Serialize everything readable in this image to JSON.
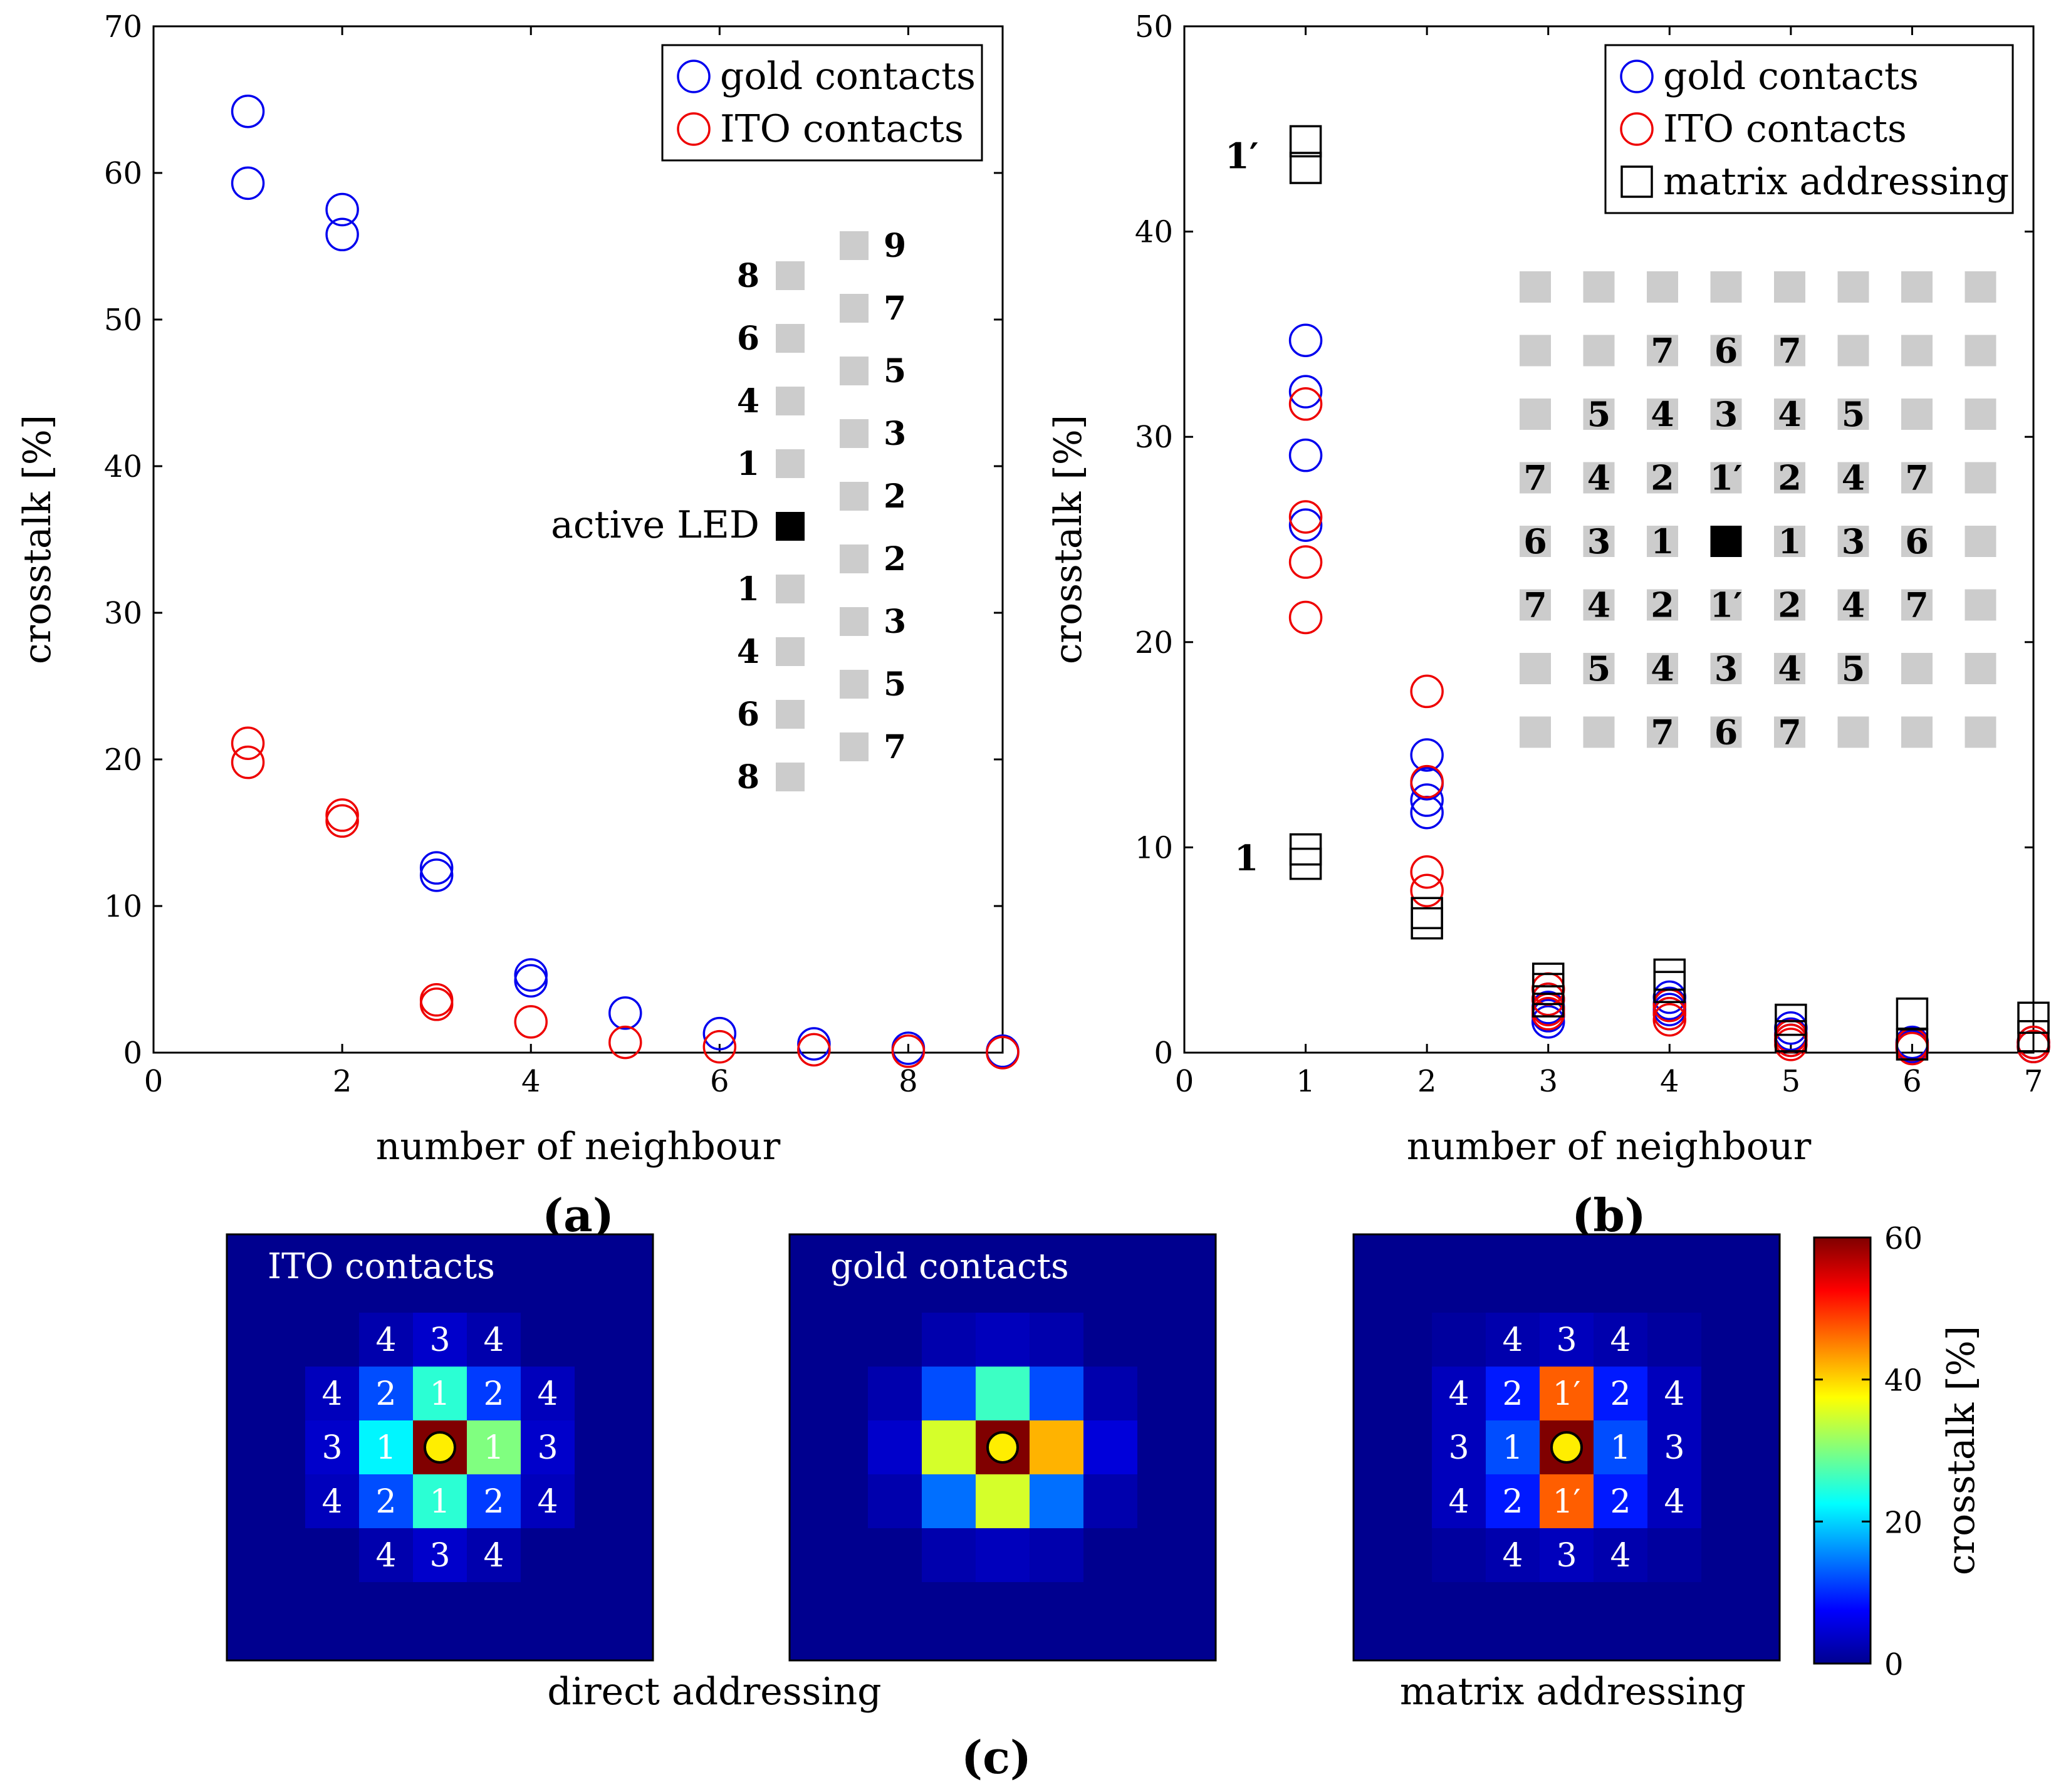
{
  "colors": {
    "gold": "#0000ee",
    "ito": "#ee0000",
    "matrix": "#000000",
    "grid_square": "#cccccc",
    "active": "#000000",
    "heat_bg": "#00008f"
  },
  "chart_data": [
    {
      "id": "a",
      "type": "scatter",
      "panel_label": "(a)",
      "xlabel": "number of neighbour",
      "ylabel": "crosstalk [%]",
      "xlim": [
        0,
        9
      ],
      "ylim": [
        0,
        70
      ],
      "xticks": [
        0,
        2,
        4,
        6,
        8
      ],
      "yticks": [
        0,
        10,
        20,
        30,
        40,
        50,
        60,
        70
      ],
      "legend": [
        "gold contacts",
        "ITO contacts"
      ],
      "series": [
        {
          "name": "gold contacts",
          "marker": "circle",
          "color": "#0000ee",
          "points": [
            [
              1,
              64.2
            ],
            [
              1,
              59.3
            ],
            [
              2,
              57.5
            ],
            [
              2,
              55.8
            ],
            [
              3,
              12.6
            ],
            [
              3,
              12.1
            ],
            [
              4,
              5.3
            ],
            [
              4,
              4.9
            ],
            [
              5,
              2.7
            ],
            [
              6,
              1.3
            ],
            [
              7,
              0.6
            ],
            [
              8,
              0.3
            ],
            [
              9,
              0.1
            ]
          ]
        },
        {
          "name": "ITO contacts",
          "marker": "circle",
          "color": "#ee0000",
          "points": [
            [
              1,
              21.1
            ],
            [
              1,
              19.8
            ],
            [
              2,
              16.2
            ],
            [
              2,
              15.8
            ],
            [
              3,
              3.6
            ],
            [
              3,
              3.3
            ],
            [
              4,
              2.1
            ],
            [
              5,
              0.7
            ],
            [
              6,
              0.4
            ],
            [
              7,
              0.2
            ],
            [
              8,
              0.1
            ],
            [
              9,
              0.0
            ]
          ]
        }
      ],
      "inset": {
        "left_labels": [
          "8",
          "6",
          "4",
          "1",
          "active LED",
          "1",
          "4",
          "6",
          "8"
        ],
        "right_labels": [
          "9",
          "7",
          "5",
          "3",
          "2",
          "2",
          "3",
          "5",
          "7"
        ]
      }
    },
    {
      "id": "b",
      "type": "scatter",
      "panel_label": "(b)",
      "xlabel": "number of neighbour",
      "ylabel": "crosstalk [%]",
      "xlim": [
        0,
        7
      ],
      "ylim": [
        0,
        50
      ],
      "xticks": [
        0,
        1,
        2,
        3,
        4,
        5,
        6,
        7
      ],
      "yticks": [
        0,
        10,
        20,
        30,
        40,
        50
      ],
      "legend": [
        "gold contacts",
        "ITO contacts",
        "matrix addressing"
      ],
      "series": [
        {
          "name": "gold contacts",
          "marker": "circle",
          "color": "#0000ee",
          "points": [
            [
              1,
              34.7
            ],
            [
              1,
              32.2
            ],
            [
              1,
              29.1
            ],
            [
              1,
              25.7
            ],
            [
              2,
              14.5
            ],
            [
              2,
              13.1
            ],
            [
              2,
              12.3
            ],
            [
              2,
              11.7
            ],
            [
              3,
              2.6
            ],
            [
              3,
              2.2
            ],
            [
              3,
              1.8
            ],
            [
              3,
              1.5
            ],
            [
              4,
              2.7
            ],
            [
              4,
              2.4
            ],
            [
              4,
              2.1
            ],
            [
              4,
              1.9
            ],
            [
              5,
              1.2
            ],
            [
              5,
              0.9
            ],
            [
              5,
              0.6
            ],
            [
              6,
              0.5
            ],
            [
              6,
              0.3
            ],
            [
              7,
              0.5
            ],
            [
              7,
              0.3
            ]
          ]
        },
        {
          "name": "ITO contacts",
          "marker": "circle",
          "color": "#ee0000",
          "points": [
            [
              1,
              31.6
            ],
            [
              1,
              26.1
            ],
            [
              1,
              23.9
            ],
            [
              1,
              21.2
            ],
            [
              2,
              17.6
            ],
            [
              2,
              13.2
            ],
            [
              2,
              8.8
            ],
            [
              2,
              7.9
            ],
            [
              3,
              3.1
            ],
            [
              3,
              2.6
            ],
            [
              3,
              2.1
            ],
            [
              3,
              1.9
            ],
            [
              4,
              2.3
            ],
            [
              4,
              1.9
            ],
            [
              4,
              1.6
            ],
            [
              5,
              0.8
            ],
            [
              5,
              0.6
            ],
            [
              5,
              0.4
            ],
            [
              6,
              0.4
            ],
            [
              6,
              0.2
            ],
            [
              7,
              0.5
            ],
            [
              7,
              0.3
            ]
          ]
        },
        {
          "name": "matrix addressing",
          "marker": "square",
          "color": "#000000",
          "points": [
            [
              1,
              44.4
            ],
            [
              1,
              43.1
            ],
            [
              1,
              9.9
            ],
            [
              1,
              9.2
            ],
            [
              2,
              6.8
            ],
            [
              2,
              6.3
            ],
            [
              3,
              3.6
            ],
            [
              3,
              3.1
            ],
            [
              3,
              2.5
            ],
            [
              4,
              3.8
            ],
            [
              4,
              3.2
            ],
            [
              5,
              1.6
            ],
            [
              5,
              0.8
            ],
            [
              6,
              1.9
            ],
            [
              6,
              0.4
            ],
            [
              7,
              1.7
            ],
            [
              7,
              0.8
            ]
          ]
        }
      ],
      "annotations": [
        {
          "text": "1′",
          "near_value": 43.7
        },
        {
          "text": "1",
          "near_value": 9.5
        }
      ],
      "inset_grid": [
        [
          "",
          "",
          "",
          "",
          "",
          "",
          "",
          ""
        ],
        [
          "",
          "",
          "7",
          "6",
          "7",
          "",
          "",
          ""
        ],
        [
          "",
          "5",
          "4",
          "3",
          "4",
          "5",
          "",
          ""
        ],
        [
          "7",
          "4",
          "2",
          "1′",
          "2",
          "4",
          "7",
          ""
        ],
        [
          "6",
          "3",
          "1",
          "*",
          "1",
          "3",
          "6",
          ""
        ],
        [
          "7",
          "4",
          "2",
          "1′",
          "2",
          "4",
          "7",
          ""
        ],
        [
          "",
          "5",
          "4",
          "3",
          "4",
          "5",
          "",
          ""
        ],
        [
          "",
          "",
          "7",
          "6",
          "7",
          "",
          "",
          ""
        ]
      ]
    },
    {
      "id": "c",
      "type": "heatmap",
      "panel_label": "(c)",
      "colorbar": {
        "label": "crosstalk [%]",
        "range": [
          0,
          60
        ],
        "ticks": [
          0,
          20,
          40,
          60
        ]
      },
      "group_labels": [
        "direct addressing",
        "matrix addressing"
      ],
      "maps": [
        {
          "title": "ITO contacts",
          "values": [
            [
              0,
              0,
              0,
              0,
              0,
              0,
              0
            ],
            [
              0,
              0,
              2,
              4,
              2,
              0,
              0
            ],
            [
              0,
              3,
              12,
              25,
              11,
              3,
              0
            ],
            [
              0,
              4,
              22,
              60,
              30,
              4,
              0
            ],
            [
              0,
              3,
              12,
              25,
              11,
              3,
              0
            ],
            [
              0,
              0,
              2,
              4,
              2,
              0,
              0
            ],
            [
              0,
              0,
              0,
              0,
              0,
              0,
              0
            ]
          ],
          "labels": [
            [
              "",
              "",
              "",
              "",
              "",
              "",
              ""
            ],
            [
              "",
              "",
              "4",
              "3",
              "4",
              "",
              ""
            ],
            [
              "",
              "4",
              "2",
              "1",
              "2",
              "4",
              ""
            ],
            [
              "",
              "3",
              "1",
              "*",
              "1",
              "3",
              ""
            ],
            [
              "",
              "4",
              "2",
              "1",
              "2",
              "4",
              ""
            ],
            [
              "",
              "",
              "4",
              "3",
              "4",
              "",
              ""
            ],
            [
              "",
              "",
              "",
              "",
              "",
              "",
              ""
            ]
          ]
        },
        {
          "title": "gold contacts",
          "values": [
            [
              0,
              0,
              0,
              0,
              0,
              0,
              0
            ],
            [
              0,
              0,
              2,
              3,
              2,
              0,
              0
            ],
            [
              0,
              2,
              12,
              26,
              12,
              2,
              0
            ],
            [
              0,
              4,
              35,
              60,
              42,
              5,
              0
            ],
            [
              0,
              2,
              14,
              35,
              14,
              2,
              0
            ],
            [
              0,
              0,
              2,
              3,
              2,
              0,
              0
            ],
            [
              0,
              0,
              0,
              0,
              0,
              0,
              0
            ]
          ],
          "labels": []
        },
        {
          "title": "",
          "values": [
            [
              0,
              0,
              0,
              0,
              0,
              0,
              0
            ],
            [
              0,
              1,
              2,
              3,
              2,
              1,
              0
            ],
            [
              0,
              3,
              9,
              47,
              9,
              3,
              0
            ],
            [
              0,
              3,
              12,
              60,
              12,
              3,
              0
            ],
            [
              0,
              3,
              9,
              47,
              9,
              3,
              0
            ],
            [
              0,
              1,
              2,
              3,
              2,
              1,
              0
            ],
            [
              0,
              0,
              0,
              0,
              0,
              0,
              0
            ]
          ],
          "labels": [
            [
              "",
              "",
              "",
              "",
              "",
              "",
              ""
            ],
            [
              "",
              "",
              "4",
              "3",
              "4",
              "",
              ""
            ],
            [
              "",
              "4",
              "2",
              "1′",
              "2",
              "4",
              ""
            ],
            [
              "",
              "3",
              "1",
              "*",
              "1",
              "3",
              ""
            ],
            [
              "",
              "4",
              "2",
              "1′",
              "2",
              "4",
              ""
            ],
            [
              "",
              "",
              "4",
              "3",
              "4",
              "",
              ""
            ],
            [
              "",
              "",
              "",
              "",
              "",
              "",
              ""
            ]
          ]
        }
      ]
    }
  ]
}
